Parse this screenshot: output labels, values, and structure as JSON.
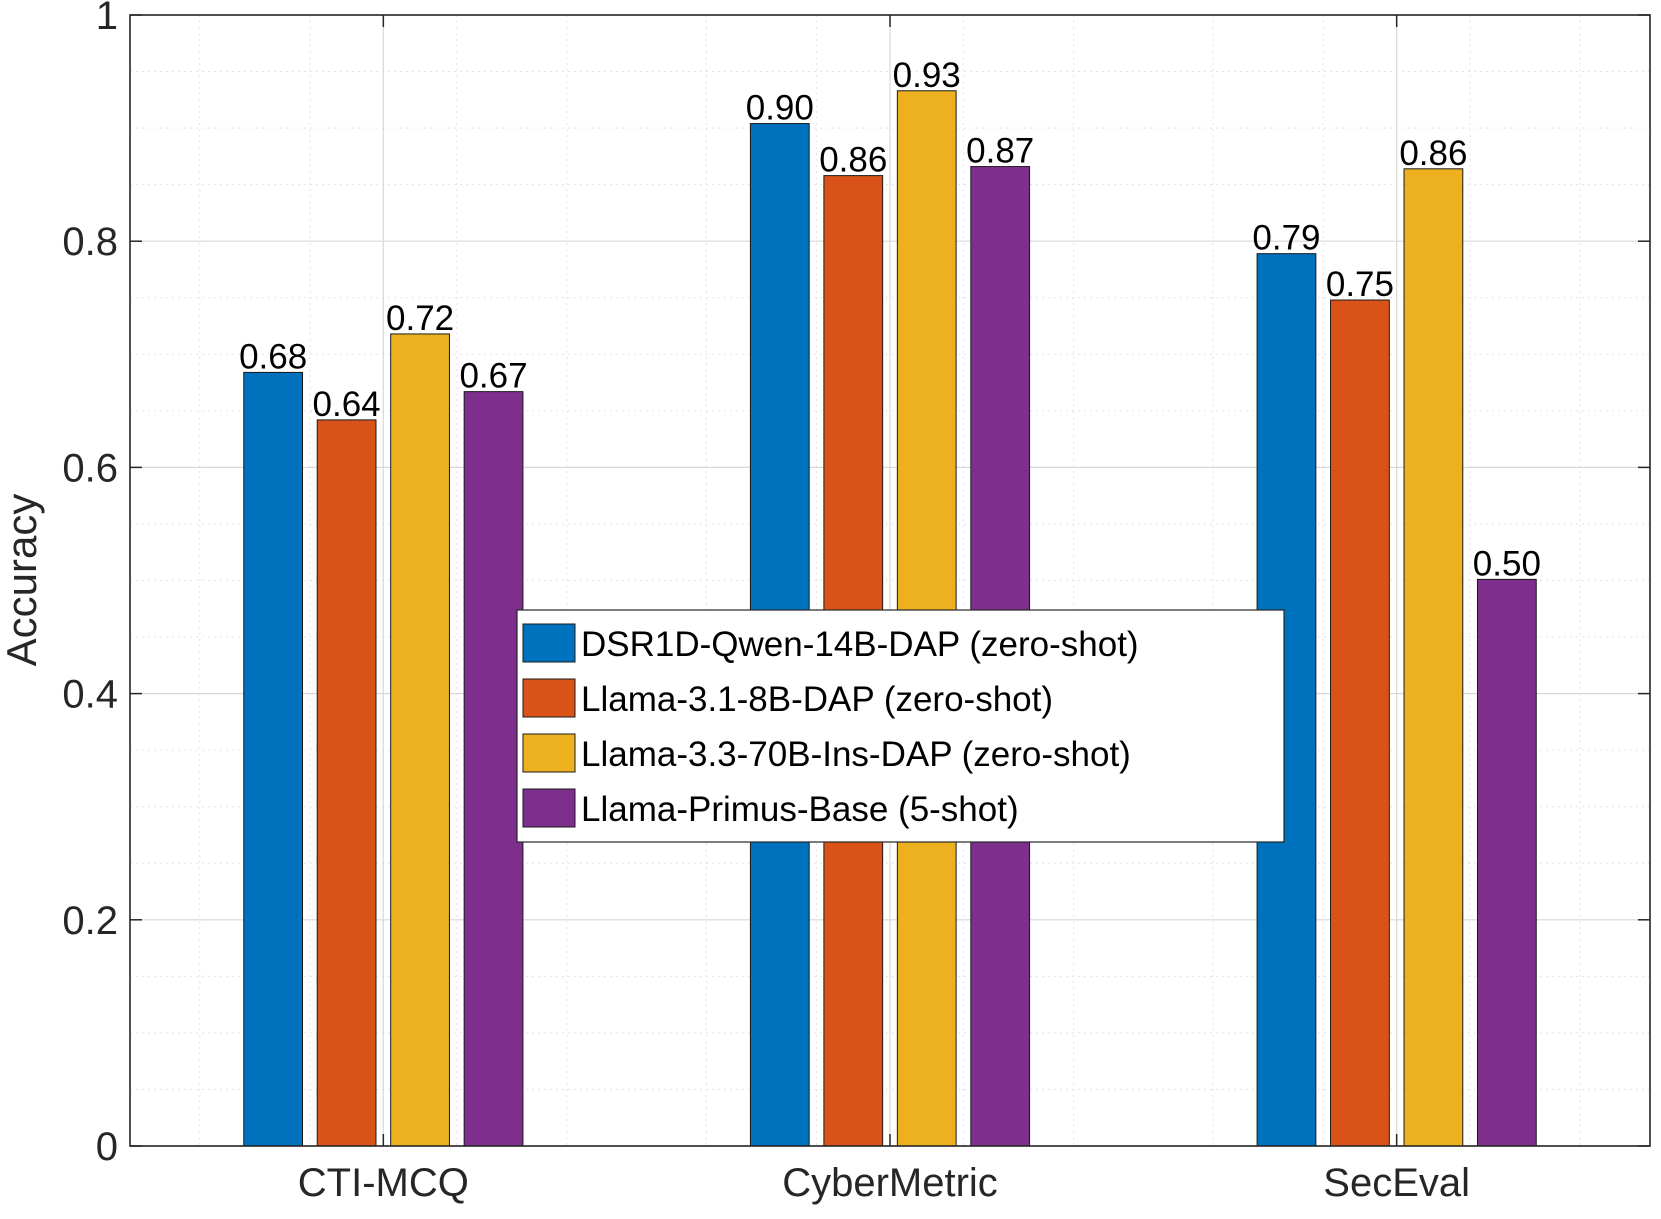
{
  "chart_data": {
    "type": "bar",
    "title": "",
    "xlabel": "",
    "ylabel": "Accuracy",
    "ylim": [
      0,
      1
    ],
    "yticks": [
      0,
      0.2,
      0.4,
      0.6,
      0.8,
      1
    ],
    "ytick_labels": [
      "0",
      "0.2",
      "0.4",
      "0.6",
      "0.8",
      "1"
    ],
    "grid": true,
    "minor_grid": true,
    "legend_position": "center",
    "categories": [
      "CTI-MCQ",
      "CyberMetric",
      "SecEval"
    ],
    "series": [
      {
        "name": "DSR1D-Qwen-14B-DAP (zero-shot)",
        "color": "#0072BD",
        "values": [
          0.684,
          0.904,
          0.789
        ],
        "labels": [
          "0.68",
          "0.90",
          "0.79"
        ]
      },
      {
        "name": "Llama-3.1-8B-DAP (zero-shot)",
        "color": "#D95319",
        "values": [
          0.642,
          0.858,
          0.748
        ],
        "labels": [
          "0.64",
          "0.86",
          "0.75"
        ]
      },
      {
        "name": "Llama-3.3-70B-Ins-DAP (zero-shot)",
        "color": "#EDB120",
        "values": [
          0.718,
          0.933,
          0.864
        ],
        "labels": [
          "0.72",
          "0.93",
          "0.86"
        ]
      },
      {
        "name": "Llama-Primus-Base (5-shot)",
        "color": "#7E2F8E",
        "values": [
          0.667,
          0.866,
          0.501
        ],
        "labels": [
          "0.67",
          "0.87",
          "0.50"
        ]
      }
    ]
  }
}
